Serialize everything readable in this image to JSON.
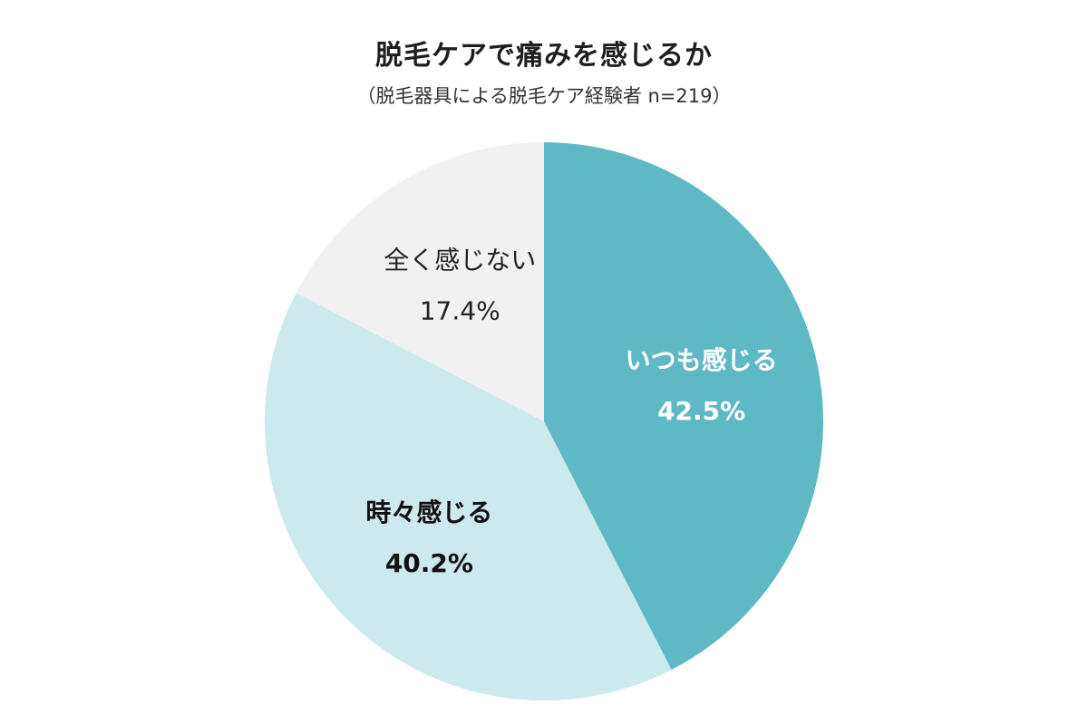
{
  "chart_data": {
    "type": "pie",
    "title": "脱毛ケアで痛みを感じるか",
    "subtitle": "（脱毛器具による脱毛ケア経験者 n=219）",
    "slices": [
      {
        "label": "いつも感じる",
        "value": 42.5,
        "display": "42.5%",
        "color": "#5fb9c5",
        "text_color": "#ffffff",
        "bold": true
      },
      {
        "label": "時々感じる",
        "value": 40.2,
        "display": "40.2%",
        "color": "#cce9ed",
        "text_color": "#111111",
        "bold": true
      },
      {
        "label": "全く感じない",
        "value": 17.4,
        "display": "17.4%",
        "color": "#f1f1f1",
        "text_color": "#222222",
        "bold": false
      }
    ],
    "start_angle": "top",
    "direction": "clockwise",
    "legend": "none"
  }
}
